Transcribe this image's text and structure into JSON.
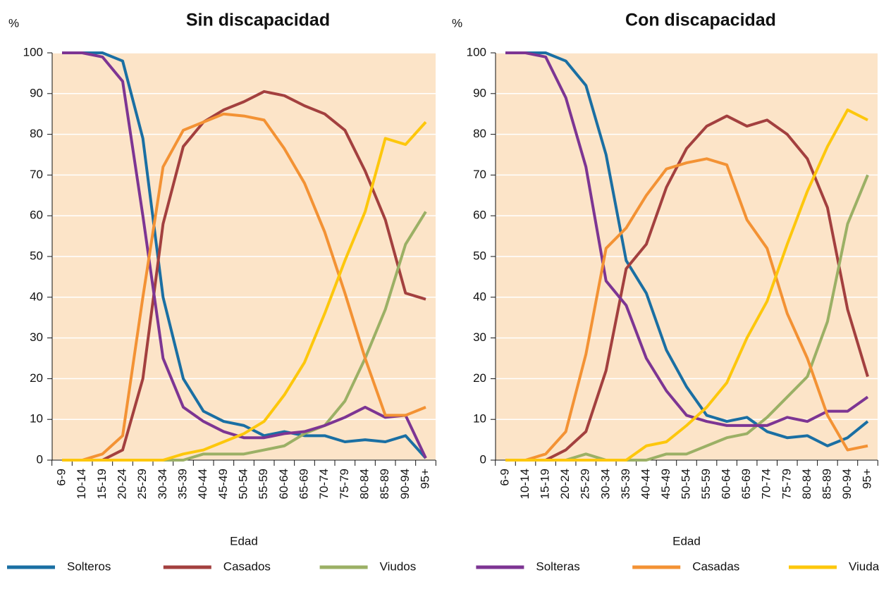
{
  "chart_data": [
    {
      "type": "line",
      "title": "Sin discapacidad",
      "y_label": "%",
      "x_label": "Edad",
      "categories": [
        "6-9",
        "10-14",
        "15-19",
        "20-24",
        "25-29",
        "30-34",
        "35-39",
        "40-44",
        "45-49",
        "50-54",
        "55-59",
        "60-64",
        "65-69",
        "70-74",
        "75-79",
        "80-84",
        "85-89",
        "90-94",
        "95+"
      ],
      "ylim": [
        0,
        100
      ],
      "yticks": [
        0,
        10,
        20,
        30,
        40,
        50,
        60,
        70,
        80,
        90,
        100
      ],
      "grid": true,
      "background": "#fce4c8",
      "series": [
        {
          "name": "Solteros",
          "color": "#1a6fa3",
          "values": [
            100,
            100,
            100,
            98,
            79,
            40,
            20,
            12,
            9.5,
            8.5,
            6,
            7,
            6,
            6,
            4.5,
            5,
            4.5,
            6,
            0.5
          ]
        },
        {
          "name": "Casados",
          "color": "#a3403f",
          "values": [
            0,
            0,
            0,
            2.5,
            20,
            58,
            77,
            83,
            86,
            88,
            90.5,
            89.5,
            87,
            85,
            81,
            71,
            59,
            41,
            39.5
          ]
        },
        {
          "name": "Viudos",
          "color": "#9bb065",
          "values": [
            0,
            0,
            0,
            0,
            0,
            0,
            0,
            1.5,
            1.5,
            1.5,
            2.5,
            3.5,
            6.5,
            8.5,
            14.5,
            25,
            37,
            53,
            61
          ]
        },
        {
          "name": "Solteras",
          "color": "#7d3593",
          "values": [
            100,
            100,
            99,
            93,
            60,
            25,
            13,
            9.5,
            7,
            5.5,
            5.5,
            6.5,
            7,
            8.5,
            10.5,
            13,
            10.5,
            11,
            0.5
          ]
        },
        {
          "name": "Casadas",
          "color": "#f39234",
          "values": [
            0,
            0,
            1.5,
            6,
            40,
            72,
            81,
            83,
            85,
            84.5,
            83.5,
            76.5,
            68,
            56,
            41,
            25,
            11,
            11,
            13
          ]
        },
        {
          "name": "Viudas",
          "color": "#fdc70c",
          "values": [
            0,
            0,
            0,
            0,
            0,
            0,
            1.5,
            2.5,
            4.5,
            6.5,
            9.5,
            16,
            24,
            36,
            49,
            61,
            79,
            77.5,
            83
          ]
        }
      ]
    },
    {
      "type": "line",
      "title": "Con discapacidad",
      "y_label": "%",
      "x_label": "Edad",
      "categories": [
        "6-9",
        "10-14",
        "15-19",
        "20-24",
        "25-29",
        "30-34",
        "35-39",
        "40-44",
        "45-49",
        "50-54",
        "55-59",
        "60-64",
        "65-69",
        "70-74",
        "75-79",
        "80-84",
        "85-89",
        "90-94",
        "95+"
      ],
      "ylim": [
        0,
        100
      ],
      "yticks": [
        0,
        10,
        20,
        30,
        40,
        50,
        60,
        70,
        80,
        90,
        100
      ],
      "grid": true,
      "background": "#fce4c8",
      "series": [
        {
          "name": "Solteros",
          "color": "#1a6fa3",
          "values": [
            100,
            100,
            100,
            98,
            92,
            75,
            49,
            41,
            27,
            18,
            11,
            9.5,
            10.5,
            7,
            5.5,
            6,
            3.5,
            5.5,
            9.5
          ]
        },
        {
          "name": "Casados",
          "color": "#a3403f",
          "values": [
            0,
            0,
            0,
            2.5,
            7,
            22,
            47,
            53,
            67,
            76.5,
            82,
            84.5,
            82,
            83.5,
            80,
            74,
            62,
            37,
            20.5
          ]
        },
        {
          "name": "Viudos",
          "color": "#9bb065",
          "values": [
            0,
            0,
            0,
            0,
            1.5,
            0,
            0,
            0,
            1.5,
            1.5,
            3.5,
            5.5,
            6.5,
            10.5,
            15.5,
            20.5,
            34,
            58,
            70
          ]
        },
        {
          "name": "Solteras",
          "color": "#7d3593",
          "values": [
            100,
            100,
            99,
            89,
            72,
            44,
            38,
            25,
            17,
            11,
            9.5,
            8.5,
            8.5,
            8.5,
            10.5,
            9.5,
            12,
            12,
            15.5
          ]
        },
        {
          "name": "Casadas",
          "color": "#f39234",
          "values": [
            0,
            0,
            1.5,
            7,
            26,
            52,
            57,
            65,
            71.5,
            73,
            74,
            72.5,
            59,
            52,
            36,
            25,
            11,
            2.5,
            3.5
          ]
        },
        {
          "name": "Viudas",
          "color": "#fdc70c",
          "values": [
            0,
            0,
            0,
            0,
            0,
            0,
            0,
            3.5,
            4.5,
            8.5,
            13,
            19,
            30,
            39,
            53,
            66,
            77,
            86,
            83.5
          ]
        }
      ]
    }
  ]
}
